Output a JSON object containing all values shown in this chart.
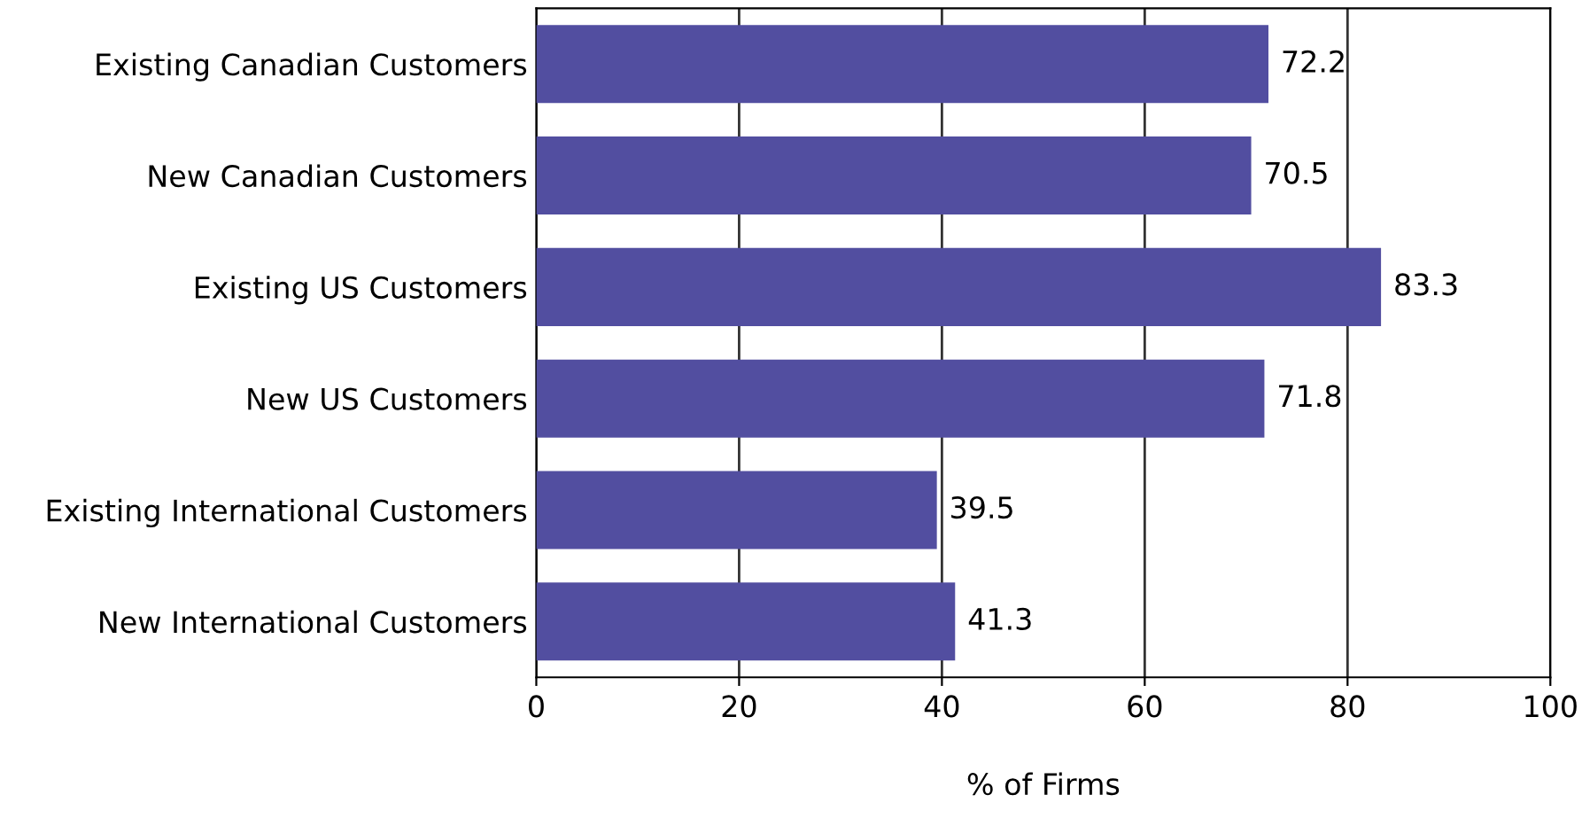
{
  "chart_data": {
    "type": "bar",
    "orientation": "horizontal",
    "xlabel": "% of Firms",
    "categories": [
      "Existing Canadian Customers",
      "New Canadian Customers",
      "Existing US Customers",
      "New US Customers",
      "Existing International Customers",
      "New International Customers"
    ],
    "values": [
      72.2,
      70.5,
      83.3,
      71.8,
      39.5,
      41.3
    ],
    "color": "#524ea0",
    "xlim": [
      0,
      100
    ],
    "xticks": [
      0,
      20,
      40,
      60,
      80,
      100
    ],
    "grid": "x",
    "data_labels": true
  }
}
